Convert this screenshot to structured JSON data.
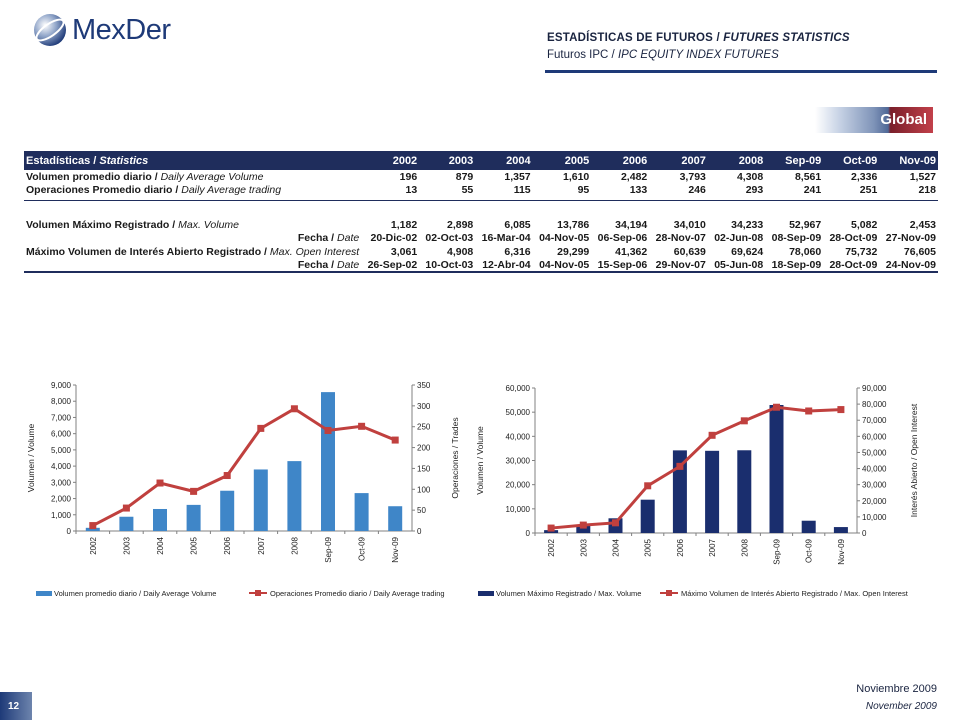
{
  "brand": {
    "name": "MexDer"
  },
  "header": {
    "title_es": "ESTADÍSTICAS DE FUTUROS",
    "title_sep": " / ",
    "title_en": "FUTURES STATISTICS",
    "sub_es": "Futuros IPC",
    "sub_sep": " / ",
    "sub_en": "IPC EQUITY INDEX FUTURES"
  },
  "global_tag": "Global",
  "table": {
    "header_label": "Estadísticas",
    "header_label_en": "Statistics",
    "columns": [
      "2002",
      "2003",
      "2004",
      "2005",
      "2006",
      "2007",
      "2008",
      "Sep-09",
      "Oct-09",
      "Nov-09"
    ],
    "rows": [
      {
        "label_es": "Volumen promedio diario",
        "label_en": "Daily Average Volume",
        "align": "left",
        "values": [
          "196",
          "879",
          "1,357",
          "1,610",
          "2,482",
          "3,793",
          "4,308",
          "8,561",
          "2,336",
          "1,527"
        ]
      },
      {
        "label_es": "Operaciones Promedio diario",
        "label_en": "Daily Average trading",
        "align": "left",
        "values": [
          "13",
          "55",
          "115",
          "95",
          "133",
          "246",
          "293",
          "241",
          "251",
          "218"
        ]
      },
      {
        "label_es": "Volumen Máximo Registrado",
        "label_en": "Max. Volume",
        "align": "left",
        "values": [
          "1,182",
          "2,898",
          "6,085",
          "13,786",
          "34,194",
          "34,010",
          "34,233",
          "52,967",
          "5,082",
          "2,453"
        ]
      },
      {
        "label_es": "Fecha",
        "label_en": "Date",
        "align": "right",
        "values": [
          "20-Dic-02",
          "02-Oct-03",
          "16-Mar-04",
          "04-Nov-05",
          "06-Sep-06",
          "28-Nov-07",
          "02-Jun-08",
          "08-Sep-09",
          "28-Oct-09",
          "27-Nov-09"
        ]
      },
      {
        "label_es": "Máximo Volumen de Interés Abierto Registrado",
        "label_en": "Max. Open Interest",
        "align": "left",
        "values": [
          "3,061",
          "4,908",
          "6,316",
          "29,299",
          "41,362",
          "60,639",
          "69,624",
          "78,060",
          "75,732",
          "76,605"
        ]
      },
      {
        "label_es": "Fecha",
        "label_en": "Date",
        "align": "right",
        "values": [
          "26-Sep-02",
          "10-Oct-03",
          "12-Abr-04",
          "04-Nov-05",
          "15-Sep-06",
          "29-Nov-07",
          "05-Jun-08",
          "18-Sep-09",
          "28-Oct-09",
          "24-Nov-09"
        ]
      }
    ]
  },
  "chart_data": [
    {
      "type": "bar+line",
      "categories": [
        "2002",
        "2003",
        "2004",
        "2005",
        "2006",
        "2007",
        "2008",
        "Sep-09",
        "Oct-09",
        "Nov-09"
      ],
      "series": [
        {
          "name": "Volumen promedio diario / Daily Average Volume",
          "kind": "bar",
          "axis": "left",
          "color": "#3f86c8",
          "values": [
            196,
            879,
            1357,
            1610,
            2482,
            3793,
            4308,
            8561,
            2336,
            1527
          ]
        },
        {
          "name": "Operaciones Promedio diario / Daily Average trading",
          "kind": "line",
          "axis": "right",
          "color": "#c0403e",
          "values": [
            13,
            55,
            115,
            95,
            133,
            246,
            293,
            241,
            251,
            218
          ]
        }
      ],
      "ylabel": "Volumen / Volume",
      "y2label": "Operaciones / Trades",
      "ylim": [
        0,
        9000
      ],
      "y2lim": [
        0,
        350
      ],
      "yticks": [
        "0",
        "1,000",
        "2,000",
        "3,000",
        "4,000",
        "5,000",
        "6,000",
        "7,000",
        "8,000",
        "9,000"
      ],
      "y2ticks": [
        "0",
        "50",
        "100",
        "150",
        "200",
        "250",
        "300",
        "350"
      ],
      "legend": "bottom"
    },
    {
      "type": "bar+line",
      "categories": [
        "2002",
        "2003",
        "2004",
        "2005",
        "2006",
        "2007",
        "2008",
        "Sep-09",
        "Oct-09",
        "Nov-09"
      ],
      "series": [
        {
          "name": "Volumen Máximo Registrado / Max. Volume",
          "kind": "bar",
          "axis": "left",
          "color": "#1a2e6e",
          "values": [
            1182,
            2898,
            6085,
            13786,
            34194,
            34010,
            34233,
            52967,
            5082,
            2453
          ]
        },
        {
          "name": "Máximo Volumen de Interés Abierto Registrado / Max. Open Interest",
          "kind": "line",
          "axis": "right",
          "color": "#c0403e",
          "values": [
            3061,
            4908,
            6316,
            29299,
            41362,
            60639,
            69624,
            78060,
            75732,
            76605
          ]
        }
      ],
      "ylabel": "Volumen / Volume",
      "y2label": "Interés Abierto / Open Interest",
      "ylim": [
        0,
        60000
      ],
      "y2lim": [
        0,
        90000
      ],
      "yticks": [
        "0",
        "10,000",
        "20,000",
        "30,000",
        "40,000",
        "50,000",
        "60,000"
      ],
      "y2ticks": [
        "0",
        "10,000",
        "20,000",
        "30,000",
        "40,000",
        "50,000",
        "60,000",
        "70,000",
        "80,000",
        "90,000"
      ],
      "legend": "bottom"
    }
  ],
  "footer": {
    "date_es": "Noviembre 2009",
    "date_en": "November 2009",
    "page": "12"
  }
}
